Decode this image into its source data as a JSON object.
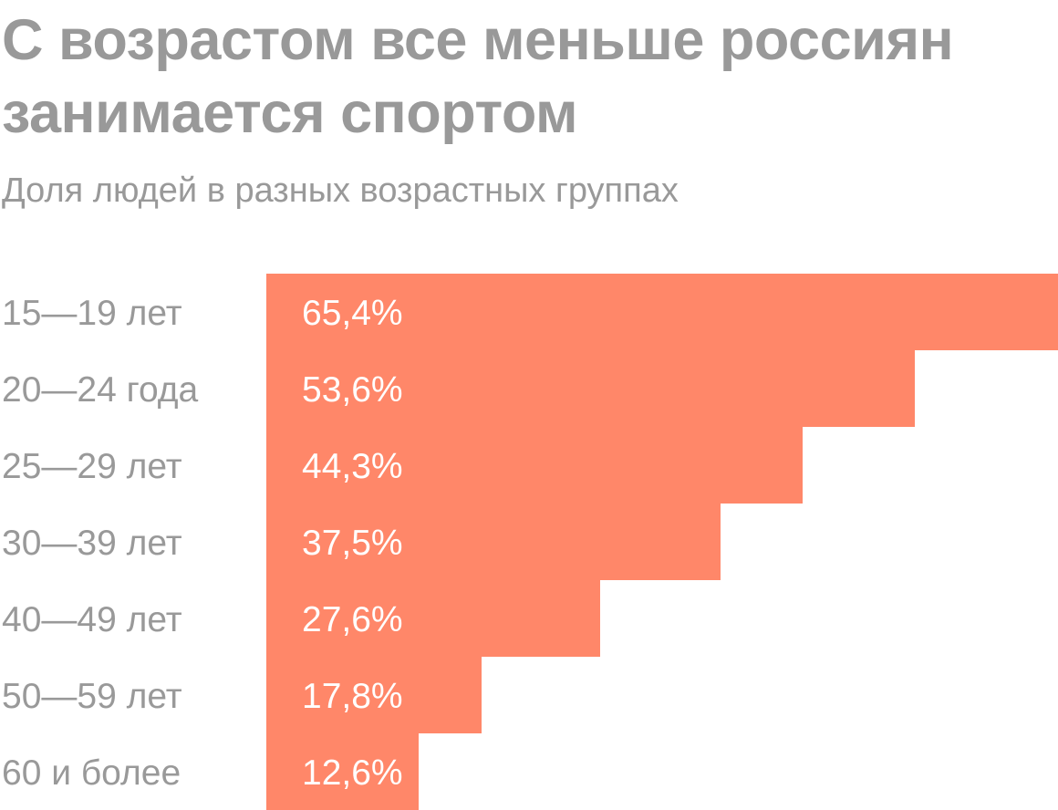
{
  "chart_data": {
    "type": "bar",
    "orientation": "horizontal",
    "title": "С возрастом все меньше россиян занимается спортом",
    "subtitle": "Доля людей в разных возрастных группах",
    "categories": [
      "15—19 лет",
      "20—24 года",
      "25—29 лет",
      "30—39 лет",
      "40—49 лет",
      "50—59 лет",
      "60 и более"
    ],
    "values": [
      65.4,
      53.6,
      44.3,
      37.5,
      27.6,
      17.8,
      12.6
    ],
    "value_labels": [
      "65,4%",
      "53,6%",
      "44,3%",
      "37,5%",
      "27,6%",
      "17,8%",
      "12,6%"
    ],
    "xlim": [
      0,
      65.4
    ],
    "unit": "%",
    "grid": false,
    "legend": "none",
    "bar_color": "#FF8769",
    "text_color": "#999999",
    "value_label_color": "#FFFFFF"
  }
}
